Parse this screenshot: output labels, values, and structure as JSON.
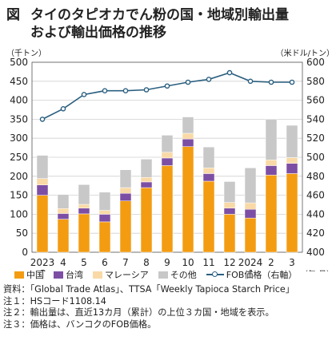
{
  "figure": {
    "label": "図",
    "title_line1": "タイのタピオカでん粉の国・地域別輸出量",
    "title_line2": "および輸出価格の推移"
  },
  "chart_data": {
    "type": "bar",
    "subtype": "stacked-bar-with-line",
    "left_axis_unit": "（千トン）",
    "right_axis_unit": "（米ドル/トン）",
    "x_axis_unit": "（年.月）",
    "left_ylim": [
      0,
      500
    ],
    "left_ticks": [
      0,
      50,
      100,
      150,
      200,
      250,
      300,
      350,
      400,
      450,
      500
    ],
    "right_ylim": [
      400,
      600
    ],
    "right_ticks": [
      400,
      420,
      440,
      460,
      480,
      500,
      520,
      540,
      560,
      580,
      600
    ],
    "grid": true,
    "legend_position": "bottom",
    "categories": [
      "2023\n.3",
      "4",
      "5",
      "6",
      "7",
      "8",
      "9",
      "10",
      "11",
      "12",
      "2024\n.1",
      "2",
      "3"
    ],
    "tick_labels": [
      {
        "line1": "2023",
        "line2": ".3"
      },
      {
        "line1": "4",
        "line2": ""
      },
      {
        "line1": "5",
        "line2": ""
      },
      {
        "line1": "6",
        "line2": ""
      },
      {
        "line1": "7",
        "line2": ""
      },
      {
        "line1": "8",
        "line2": ""
      },
      {
        "line1": "9",
        "line2": ""
      },
      {
        "line1": "10",
        "line2": ""
      },
      {
        "line1": "11",
        "line2": ""
      },
      {
        "line1": "12",
        "line2": ""
      },
      {
        "line1": "2024",
        "line2": ".1"
      },
      {
        "line1": "2",
        "line2": ""
      },
      {
        "line1": "3",
        "line2": ""
      }
    ],
    "series": [
      {
        "name": "中国",
        "color": "#f39c12",
        "values": [
          150,
          87,
          101,
          80,
          135,
          170,
          228,
          278,
          187,
          100,
          90,
          203,
          207
        ]
      },
      {
        "name": "台湾",
        "color": "#7d4fa4",
        "values": [
          27,
          15,
          15,
          20,
          20,
          15,
          20,
          20,
          20,
          16,
          23,
          25,
          27
        ]
      },
      {
        "name": "マレーシア",
        "color": "#f9d9a6",
        "values": [
          17,
          13,
          10,
          10,
          15,
          12,
          15,
          15,
          15,
          15,
          17,
          15,
          15
        ]
      },
      {
        "name": "その他",
        "color": "#c8c8c8",
        "values": [
          61,
          37,
          52,
          48,
          47,
          48,
          45,
          43,
          55,
          55,
          92,
          107,
          85
        ]
      }
    ],
    "line_series": {
      "name": "FOB価格（右軸）",
      "color": "#2a5f80",
      "axis": "right",
      "values": [
        540,
        551,
        566,
        570,
        570,
        571,
        575,
        579,
        582,
        589,
        580,
        579,
        579
      ]
    }
  },
  "notes": [
    "資料：「Global Trade Atlas」、TTSA「Weekly Tapioca Starch Price」",
    "注１：HSコード1108.14",
    "注２：輸出量は、直近13カ月（累計）の上位３カ国・地域を表示。",
    "注３：価格は、バンコクのFOB価格。"
  ]
}
